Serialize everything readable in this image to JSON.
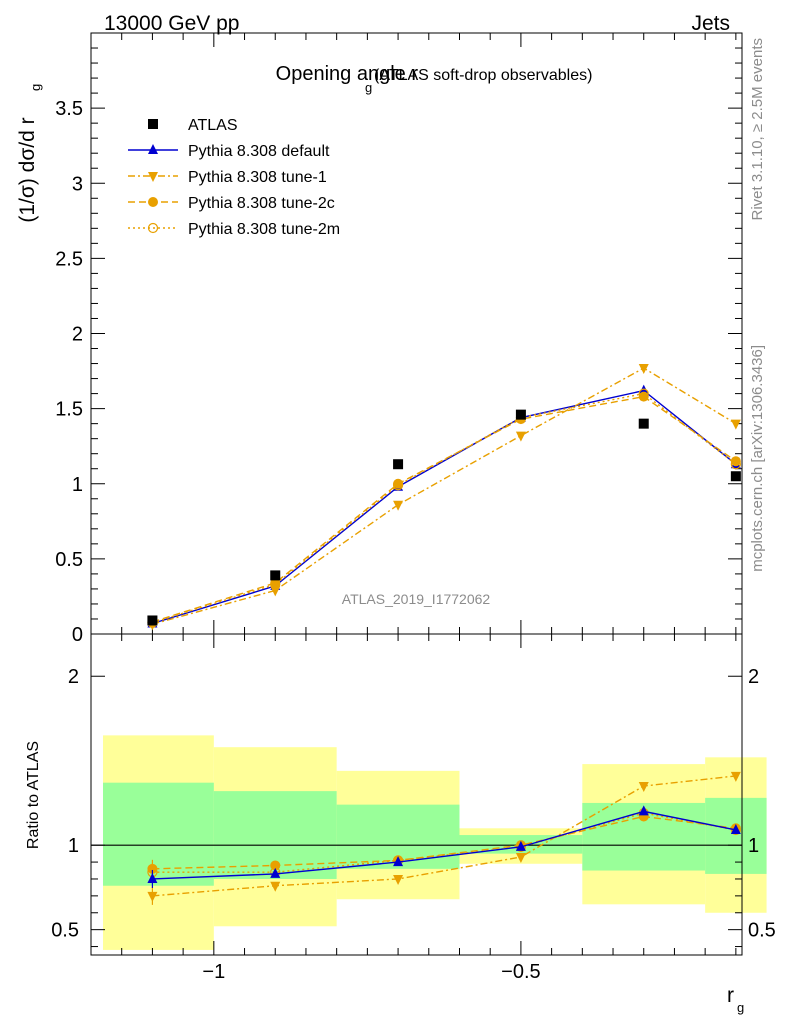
{
  "header": {
    "left": "13000 GeV pp",
    "right": "Jets"
  },
  "side_labels": {
    "rivet": "Rivet 3.1.10, ≥ 2.5M events",
    "mcplots": "mcplots.cern.ch [arXiv:1306.3436]"
  },
  "analysis_id": "ATLAS_2019_I1772062",
  "colors": {
    "data": "#000000",
    "default": "#0000d0",
    "tunes": "#e8a000",
    "band_inner": "#99ff99",
    "band_outer": "#ffff99"
  },
  "chart_data": [
    {
      "type": "line",
      "title": "Opening angle r",
      "title_sub": "g",
      "title_note": "(ATLAS soft-drop observables)",
      "ylabel": "(1/σ) dσ/d r",
      "ylabel_sub": "g",
      "xlim": [
        -1.2,
        -0.14
      ],
      "ylim": [
        0,
        4.0
      ],
      "yticks": [
        0,
        0.5,
        1,
        1.5,
        2,
        2.5,
        3,
        3.5
      ],
      "ytick_labels": [
        "0",
        "0.5",
        "1",
        "1.5",
        "2",
        "2.5",
        "3",
        "3.5"
      ],
      "x": [
        -1.1,
        -0.9,
        -0.7,
        -0.5,
        -0.3,
        -0.15
      ],
      "legend_position": "top-left",
      "series": [
        {
          "name": "ATLAS",
          "values": [
            0.09,
            0.39,
            1.13,
            1.46,
            1.4,
            1.05
          ],
          "color": "#000000",
          "marker": "square",
          "line": "none"
        },
        {
          "name": "Pythia 8.308 default",
          "values": [
            0.07,
            0.32,
            0.98,
            1.44,
            1.62,
            1.13
          ],
          "color": "#0000d0",
          "marker": "triangle-up",
          "line": "solid"
        },
        {
          "name": "Pythia 8.308 tune-1",
          "values": [
            0.065,
            0.29,
            0.86,
            1.32,
            1.77,
            1.4
          ],
          "color": "#e8a000",
          "marker": "triangle-down",
          "line": "dashdot"
        },
        {
          "name": "Pythia 8.308 tune-2c",
          "values": [
            0.08,
            0.34,
            1.0,
            1.43,
            1.58,
            1.15
          ],
          "color": "#e8a000",
          "marker": "circle-filled",
          "line": "dashed"
        },
        {
          "name": "Pythia 8.308 tune-2m",
          "values": [
            0.075,
            0.33,
            0.99,
            1.44,
            1.6,
            1.13
          ],
          "color": "#e8a000",
          "marker": "circle-open",
          "line": "dotted"
        }
      ]
    },
    {
      "type": "line",
      "ylabel": "Ratio to ATLAS",
      "xlabel": "r",
      "xlabel_sub": "g",
      "xlim": [
        -1.2,
        -0.14
      ],
      "ylim": [
        0.35,
        2.25
      ],
      "yticks": [
        0.5,
        1,
        2
      ],
      "ytick_labels": [
        "0.5",
        "1",
        "2"
      ],
      "xticks": [
        -1,
        -0.5
      ],
      "xtick_labels": [
        "−1",
        "−0.5"
      ],
      "x": [
        -1.1,
        -0.9,
        -0.7,
        -0.5,
        -0.3,
        -0.15
      ],
      "bands": {
        "edges": [
          -1.2,
          -1.0,
          -0.8,
          -0.6,
          -0.4,
          -0.2,
          -0.1
        ],
        "inner_low": [
          0.76,
          0.8,
          0.86,
          0.95,
          0.85,
          0.83
        ],
        "inner_high": [
          1.37,
          1.32,
          1.24,
          1.06,
          1.25,
          1.28
        ],
        "outer_low": [
          0.38,
          0.52,
          0.68,
          0.89,
          0.65,
          0.6
        ],
        "outer_high": [
          1.65,
          1.58,
          1.44,
          1.1,
          1.48,
          1.52
        ]
      },
      "series": [
        {
          "name": "Pythia 8.308 default",
          "values": [
            0.8,
            0.83,
            0.9,
            0.99,
            1.2,
            1.09
          ],
          "color": "#0000d0",
          "marker": "triangle-up",
          "line": "solid"
        },
        {
          "name": "Pythia 8.308 tune-1",
          "values": [
            0.7,
            0.76,
            0.8,
            0.93,
            1.35,
            1.41
          ],
          "color": "#e8a000",
          "marker": "triangle-down",
          "line": "dashdot"
        },
        {
          "name": "Pythia 8.308 tune-2c",
          "values": [
            0.86,
            0.88,
            0.91,
            1.0,
            1.17,
            1.1
          ],
          "color": "#e8a000",
          "marker": "circle-filled",
          "line": "dashed"
        },
        {
          "name": "Pythia 8.308 tune-2m",
          "values": [
            0.84,
            0.84,
            0.91,
            0.99,
            1.19,
            1.09
          ],
          "color": "#e8a000",
          "marker": "circle-open",
          "line": "dotted"
        }
      ]
    }
  ]
}
